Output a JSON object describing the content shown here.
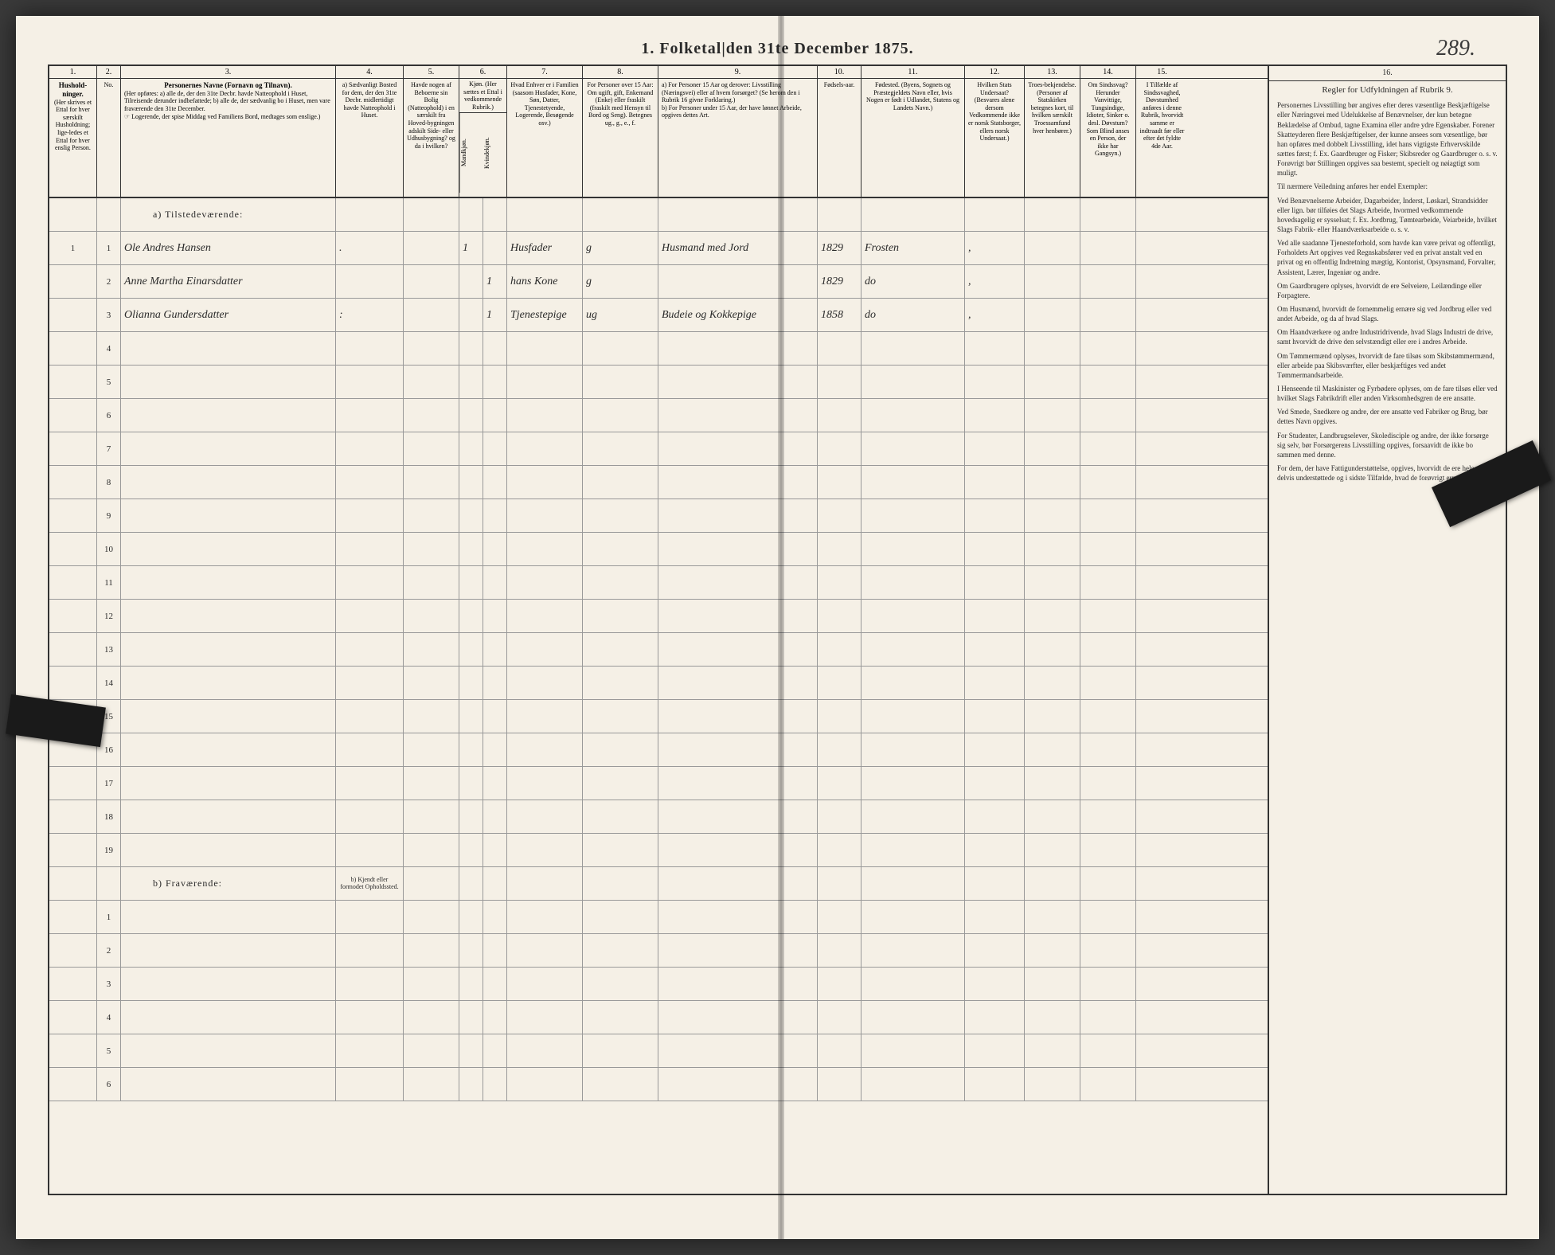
{
  "page_number": "289.",
  "title": "1.  Folketal|den 31te December 1875.",
  "columns": {
    "numbers": [
      "1.",
      "2.",
      "3.",
      "4.",
      "5.",
      "6.",
      "7.",
      "8.",
      "9.",
      "10.",
      "11.",
      "12.",
      "13.",
      "14.",
      "15.",
      "16."
    ],
    "h1": "Hushold-ninger.",
    "h1_sub": "(Her skrives et Ettal for hver særskilt Husholdning; lige-ledes et Ettal for hver enslig Person.",
    "h2": "No.",
    "h3": "Personernes Navne (Fornavn og Tilnavn).",
    "h3_sub": "(Her opføres:\na) alle de, der den 31te Decbr. havde Natteophold i Huset, Tilreisende derunder indbefattede;\nb) alle de, der sædvanlig bo i Huset, men vare fraværende den 31te December.",
    "h3_note": "☞ Logerende, der spise Middag ved Familiens Bord, medtages som enslige.)",
    "h4": "a) Sædvanligt Bosted for dem, der den 31te Decbr. midlertidigt havde Natteophold i Huset.",
    "h4b": "b) Kjendt eller formodet Opholdssted.",
    "h5": "Havde nogen af Beboerne sin Bolig (Natteophold) i en særskilt fra Hoved-bygningen adskilt Side- eller Udhusbygning? og da i hvilken?",
    "h6": "Kjøn. (Her sættes et Ettal i vedkommende Rubrik.)",
    "h6m": "Mandkjøn.",
    "h6k": "Kvindekjøn.",
    "h7": "Hvad Enhver er i Familien (saasom Husfader, Kone, Søn, Datter, Tjenestetyende, Logerende, Besøgende osv.)",
    "h8": "For Personer over 15 Aar: Om ugift, gift, Enkemand (Enke) eller fraskilt (fraskilt med Hensyn til Bord og Seng). Betegnes ug., g., e., f.",
    "h9a": "a) For Personer 15 Aar og derover: Livsstilling (Næringsvei) eller af hvem forsørget? (Se herom den i Rubrik 16 givne Forklaring.)",
    "h9b": "b) For Personer under 15 Aar, der have lønnet Arbeide, opgives dettes Art.",
    "h10": "Fødsels-aar.",
    "h11": "Fødested. (Byens, Sognets og Præstegjeldets Navn eller, hvis Nogen er født i Udlandet, Statens og Landets Navn.)",
    "h12": "Hvilken Stats Undersaat? (Besvares alene dersom Vedkommende ikke er norsk Statsborger, ellers norsk Undersaat.)",
    "h13": "Troes-bekjendelse. (Personer af Statskirken betegnes kort, til hvilken særskilt Troessamfund hver henbører.)",
    "h14": "Om Sindssvag? Herunder Vanvittige, Tungsindige, Idioter, Sinker o. desl. Døvstum? Som Blind anses en Person, der ikke har Gangsyn.)",
    "h15": "I Tilfælde af Sindssvaghed, Døvstumhed anføres i denne Rubrik, hvorvidt samme er indtraadt før eller efter det fyldte 4de Aar.",
    "h16": "Regler for Udfyldningen af Rubrik 9."
  },
  "section_a": "a)  Tilstedeværende:",
  "section_b": "b)  Fraværende:",
  "entries": [
    {
      "n": "1",
      "name": "Ole Andres Hansen",
      "col4": ".",
      "col6m": "1",
      "col6k": "",
      "col7": "Husfader",
      "col8": "g",
      "col9": "Husmand med Jord",
      "col10": "1829",
      "col11": "Frosten",
      "col12": ",",
      "col13": ""
    },
    {
      "n": "2",
      "name": "Anne Martha Einarsdatter",
      "col4": "",
      "col6m": "",
      "col6k": "1",
      "col7": "hans Kone",
      "col8": "g",
      "col9": "",
      "col10": "1829",
      "col11": "do",
      "col12": ",",
      "col13": ""
    },
    {
      "n": "3",
      "name": "Olianna Gundersdatter",
      "col4": ":",
      "col6m": "",
      "col6k": "1",
      "col7": "Tjenestepige",
      "col8": "ug",
      "col9": "Budeie og Kokkepige",
      "col10": "1858",
      "col11": "do",
      "col12": ",",
      "col13": ""
    }
  ],
  "rules_text": {
    "p1": "Personernes Livsstilling bør angives efter deres væsentlige Beskjæftigelse eller Næringsvei med Udelukkelse af Benævnelser, der kun betegne Beklædelse af Ombud, tagne Examina eller andre ydre Egenskaber. Forener Skatteyderen flere Beskjæftigelser, der kunne ansees som væsentlige, bør han opføres med dobbelt Livsstilling, idet hans vigtigste Erhvervskilde sættes først; f. Ex. Gaardbruger og Fisker; Skibsreder og Gaardbruger o. s. v. Forøvrigt bør Stillingen opgives saa bestemt, specielt og nøiagtigt som muligt.",
    "p2": "Til nærmere Veiledning anføres her endel Exempler:",
    "p3": "Ved Benævnelserne Arbeider, Dagarbeider, Inderst, Løskarl, Strandsidder eller lign. bør tilføies det Slags Arbeide, hvormed vedkommende hovedsagelig er sysselsat; f. Ex. Jordbrug, Tømtearbeide, Veiarbeide, hvilket Slags Fabrik- eller Haandværksarbeide o. s. v.",
    "p4": "Ved alle saadanne Tjenesteforhold, som havde kan være privat og offentligt, Forholdets Art opgives ved Regnskabsfører ved en privat anstalt ved en privat og en offentlig Indretning mægtig, Kontorist, Opsynsmand, Forvalter, Assistent, Lærer, Ingeniør og andre.",
    "p5": "Om Gaardbrugere oplyses, hvorvidt de ere Selveiere, Leilændinge eller Forpagtere.",
    "p6": "Om Husmænd, hvorvidt de fornemmelig ernære sig ved Jordbrug eller ved andet Arbeide, og da af hvad Slags.",
    "p7": "Om Haandværkere og andre Industridrivende, hvad Slags Industri de drive, samt hvorvidt de drive den selvstændigt eller ere i andres Arbeide.",
    "p8": "Om Tømmermænd oplyses, hvorvidt de fare tilsøs som Skibstømmermænd, eller arbeide paa Skibsværfter, eller beskjæftiges ved andet Tømmermandsarbeide.",
    "p9": "I Henseende til Maskinister og Fyrbødere oplyses, om de fare tilsøs eller ved hvilket Slags Fabrikdrift eller anden Virksomhedsgren de ere ansatte.",
    "p10": "Ved Smede, Snedkere og andre, der ere ansatte ved Fabriker og Brug, bør dettes Navn opgives.",
    "p11": "For Studenter, Landbrugselever, Skoledisciple og andre, der ikke forsørge sig selv, bør Forsørgerens Livsstilling opgives, forsaavidt de ikke bo sammen med denne.",
    "p12": "For dem, der have Fattigunderstøttelse, opgives, hvorvidt de ere hele eller delvis understøttede og i sidste Tilfælde, hvad de forøvrigt ernære sig ved."
  }
}
